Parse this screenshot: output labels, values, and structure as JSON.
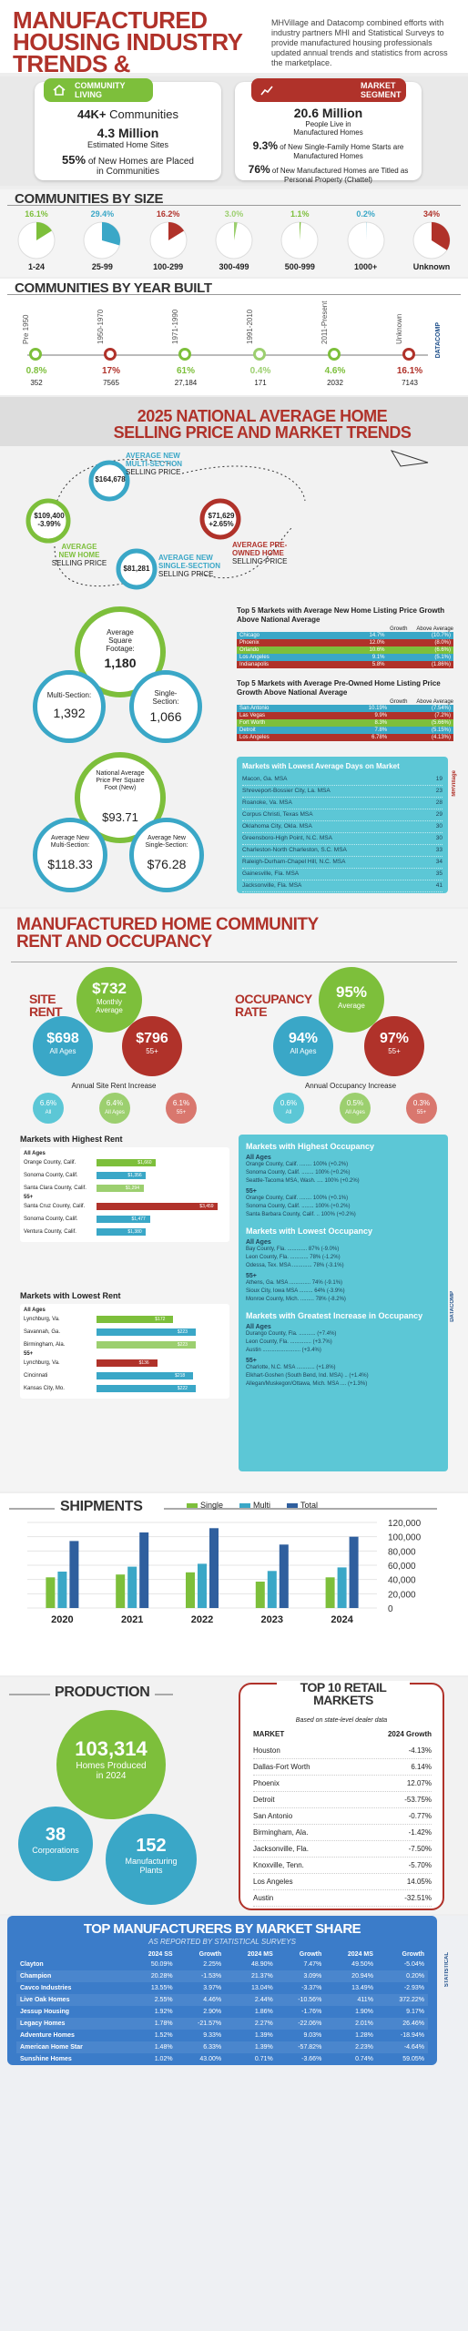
{
  "header": {
    "title_lines": [
      "MANUFACTURED",
      "HOUSING INDUSTRY",
      "TRENDS & STATISTICS:"
    ],
    "intro": "MHVillage and Datacomp combined efforts with industry partners MHI and Statistical Surveys to provide manufactured housing professionals updated annual trends and statistics from across the marketplace."
  },
  "community_living": {
    "label": "COMMUNITY LIVING",
    "stat1_value": "44K+",
    "stat1_text": "Communities",
    "stat2_value": "4.3 Million",
    "stat2_text": "Estimated Home Sites",
    "stat3_value": "55%",
    "stat3_text": "of New Homes are Placed in Communities"
  },
  "market_segment": {
    "label": "MARKET SEGMENT",
    "stat1_value": "20.6 Million",
    "stat1_text": "People Live in Manufactured Homes",
    "stat2_value": "9.3%",
    "stat2_text": "of New Single-Family Home Starts are Manufactured Homes",
    "stat3_value": "76%",
    "stat3_text": "of New Manufactured Homes are Titled as Personal Property (Chattel)"
  },
  "communities_by_size": {
    "title": "COMMUNITIES BY SIZE",
    "items": [
      {
        "pct": "16.1%",
        "label": "1-24",
        "value": 0.161,
        "color": "#7dbf3b"
      },
      {
        "pct": "29.4%",
        "label": "25-99",
        "value": 0.294,
        "color": "#3aa7c7"
      },
      {
        "pct": "16.2%",
        "label": "100-299",
        "value": 0.162,
        "color": "#b0322a"
      },
      {
        "pct": "3.0%",
        "label": "300-499",
        "value": 0.03,
        "color": "#9ccf6f"
      },
      {
        "pct": "1.1%",
        "label": "500-999",
        "value": 0.011,
        "color": "#7dbf3b"
      },
      {
        "pct": "0.2%",
        "label": "1000+",
        "value": 0.002,
        "color": "#3aa7c7"
      },
      {
        "pct": "34%",
        "label": "Unknown",
        "value": 0.34,
        "color": "#b0322a"
      }
    ]
  },
  "communities_by_year": {
    "title": "COMMUNITIES BY YEAR BUILT",
    "items": [
      {
        "label": "Pre 1950",
        "pct": "0.8%",
        "count": "352",
        "color": "#7dbf3b"
      },
      {
        "label": "1950-1970",
        "pct": "17%",
        "count": "7565",
        "color": "#b0322a"
      },
      {
        "label": "1971-1990",
        "pct": "61%",
        "count": "27,184",
        "color": "#7dbf3b"
      },
      {
        "label": "1991-2010",
        "pct": "0.4%",
        "count": "171",
        "color": "#9ccf6f"
      },
      {
        "label": "2011-Present",
        "pct": "4.6%",
        "count": "2032",
        "color": "#7dbf3b"
      },
      {
        "label": "Unknown",
        "pct": "16.1%",
        "count": "7143",
        "color": "#b0322a"
      }
    ]
  },
  "prices": {
    "title_line1": "2025 NATIONAL AVERAGE HOME",
    "title_line2": "SELLING PRICE AND MARKET TRENDS",
    "multi": {
      "price": "$164,678",
      "label_line1": "AVERAGE NEW",
      "label_line2": "MULTI-SECTION",
      "label_line3": "SELLING PRICE"
    },
    "new_home": {
      "price": "$109,400",
      "change": "-3.99%",
      "label_line1": "AVERAGE",
      "label_line2": "NEW HOME",
      "label_line3": "SELLING PRICE"
    },
    "preowned": {
      "price": "$71,629",
      "change": "+2.65%",
      "label_line1": "AVERAGE PRE-",
      "label_line2": "OWNED HOME",
      "label_line3": "SELLING PRICE"
    },
    "single": {
      "price": "$81,281",
      "label_line1": "AVERAGE NEW",
      "label_line2": "SINGLE-SECTION",
      "label_line3": "SELLING PRICE"
    }
  },
  "square_footage": {
    "avg_label": "Average Square Footage:",
    "avg_value": "1,180",
    "multi_label": "Multi-Section:",
    "multi_value": "1,392",
    "single_label": "Single-Section:",
    "single_value": "1,066"
  },
  "price_per_sqft": {
    "avg_label": "National Average Price Per Square Foot (New)",
    "avg_value": "$93.71",
    "multi_label": "Average New Multi-Section:",
    "multi_value": "$118.33",
    "single_label": "Average New Single-Section:",
    "single_value": "$76.28"
  },
  "top_new_markets": {
    "title": "Top 5 Markets with Average New Home Listing Price Growth Above National Average",
    "col1": "Growth",
    "col2": "Above Average",
    "rows": [
      {
        "market": "Chicago",
        "growth": "14.7%",
        "above": "(10.7%)"
      },
      {
        "market": "Phoenix",
        "growth": "12.0%",
        "above": "(8.0%)"
      },
      {
        "market": "Orlando",
        "growth": "10.6%",
        "above": "(6.6%)"
      },
      {
        "market": "Los Angeles",
        "growth": "9.1%",
        "above": "(5.1%)"
      },
      {
        "market": "Indianapolis",
        "growth": "5.8%",
        "above": "(1.86%)"
      }
    ]
  },
  "top_preowned_markets": {
    "title": "Top 5 Markets with Average Pre-Owned Home Listing Price Growth Above National Average",
    "col1": "Growth",
    "col2": "Above Average",
    "rows": [
      {
        "market": "San Antonio",
        "growth": "10.19%",
        "above": "(7.54%)"
      },
      {
        "market": "Las Vegas",
        "growth": "9.9%",
        "above": "(7.2%)"
      },
      {
        "market": "Fort Worth",
        "growth": "8.3%",
        "above": "(5.66%)"
      },
      {
        "market": "Detroit",
        "growth": "7.8%",
        "above": "(5.15%)"
      },
      {
        "market": "Los Angeles",
        "growth": "6.78%",
        "above": "(4.13%)"
      }
    ]
  },
  "lowest_days": {
    "title": "Markets with Lowest Average Days on Market",
    "rows": [
      {
        "market": "Macon, Ga. MSA",
        "days": "19"
      },
      {
        "market": "Shreveport-Bossier City, La. MSA",
        "days": "23"
      },
      {
        "market": "Roanoke, Va. MSA",
        "days": "28"
      },
      {
        "market": "Corpus Christi, Texas MSA",
        "days": "29"
      },
      {
        "market": "Oklahoma City, Okla. MSA",
        "days": "30"
      },
      {
        "market": "Greensboro-High Point, N.C. MSA",
        "days": "30"
      },
      {
        "market": "Charleston-North Charleston, S.C. MSA",
        "days": "33"
      },
      {
        "market": "Raleigh-Durham-Chapel Hill, N.C. MSA",
        "days": "34"
      },
      {
        "market": "Gainesville, Fla. MSA",
        "days": "35"
      },
      {
        "market": "Jacksonville, Fla. MSA",
        "days": "41"
      }
    ]
  },
  "rent": {
    "title_line1": "MANUFACTURED HOME COMMUNITY",
    "title_line2": "RENT AND OCCUPANCY",
    "site_rent_label": "SITE RENT",
    "monthly_value": "$732",
    "monthly_label": "Monthly Average",
    "all_value": "$698",
    "all_label": "All Ages",
    "senior_value": "$796",
    "senior_label": "55+",
    "increase_title": "Annual Site Rent Increase",
    "inc1": "6.6%",
    "inc1_label": "All",
    "inc2": "6.4%",
    "inc2_label": "All Ages",
    "inc3": "6.1%",
    "inc3_label": "55+"
  },
  "occupancy": {
    "label": "OCCUPANCY RATE",
    "avg_value": "95%",
    "avg_label": "Average",
    "all_value": "94%",
    "all_label": "All Ages",
    "senior_value": "97%",
    "senior_label": "55+",
    "increase_title": "Annual Occupancy Increase",
    "inc1": "0.6%",
    "inc1_label": "All",
    "inc2": "0.5%",
    "inc2_label": "All Ages",
    "inc3": "0.3%",
    "inc3_label": "55+"
  },
  "highest_rent": {
    "title": "Markets with Highest Rent",
    "group1": "All Ages",
    "group2": "55+",
    "bars": [
      {
        "market": "Orange County, Calif.",
        "value": "$1,660",
        "frac": 0.48,
        "color": "#7dbf3b"
      },
      {
        "market": "Sonoma County, Calif.",
        "value": "$1,356",
        "frac": 0.4,
        "color": "#3aa7c7"
      },
      {
        "market": "Santa Clara County, Calif.",
        "value": "$1,294",
        "frac": 0.38,
        "color": "#9ccf6f"
      },
      {
        "market": "Santa Cruz County, Calif.",
        "value": "$3,459",
        "frac": 0.98,
        "color": "#b0322a"
      },
      {
        "market": "Sonoma County, Calif.",
        "value": "$1,477",
        "frac": 0.43,
        "color": "#3aa7c7"
      },
      {
        "market": "Ventura County, Calif.",
        "value": "$1,380",
        "frac": 0.4,
        "color": "#3aa7c7"
      }
    ]
  },
  "lowest_rent": {
    "title": "Markets with Lowest Rent",
    "group1": "All Ages",
    "group2": "55+",
    "bars": [
      {
        "market": "Lynchburg, Va.",
        "value": "$172",
        "frac": 0.62,
        "color": "#7dbf3b"
      },
      {
        "market": "Savannah, Ga.",
        "value": "$223",
        "frac": 0.8,
        "color": "#3aa7c7"
      },
      {
        "market": "Birmingham, Ala.",
        "value": "$223",
        "frac": 0.8,
        "color": "#9ccf6f"
      },
      {
        "market": "Lynchburg, Va.",
        "value": "$136",
        "frac": 0.49,
        "color": "#b0322a"
      },
      {
        "market": "Cincinnati",
        "value": "$218",
        "frac": 0.78,
        "color": "#3aa7c7"
      },
      {
        "market": "Kansas City, Mo.",
        "value": "$222",
        "frac": 0.8,
        "color": "#3aa7c7"
      }
    ]
  },
  "occupancy_box": {
    "highest_title": "Markets with Highest Occupancy",
    "highest_all_label": "All Ages",
    "highest_all": [
      "Orange County, Calif. ........ 100% (+0.2%)",
      "Sonoma County, Calif. ........ 100% (+0.2%)",
      "Seattle-Tacoma MSA, Wash. .... 100% (+0.2%)"
    ],
    "highest_55_label": "55+",
    "highest_55": [
      "Orange County, Calif. ........ 100% (+0.1%)",
      "Sonoma County, Calif. ........ 100% (+0.2%)",
      "Santa Barbara County, Calif. .. 100% (+0.2%)"
    ],
    "lowest_title": "Markets with Lowest Occupancy",
    "lowest_all_label": "All Ages",
    "lowest_all": [
      "Bay County, Fla. ............. 87% (-9.0%)",
      "Leon County, Fla. ............ 78% (-1.2%)",
      "Odessa, Tex. MSA ............. 78% (-3.1%)"
    ],
    "lowest_55_label": "55+",
    "lowest_55": [
      "Athens, Ga. MSA .............. 74% (-9.1%)",
      "Sioux City, Iowa MSA ......... 64% (-3.9%)",
      "Monroe County, Mich. ......... 78% (-8.2%)"
    ],
    "growth_title": "Markets with Greatest Increase in Occupancy",
    "growth_all_label": "All Ages",
    "growth_all": [
      "Durango County, Fla. ........... (+7.4%)",
      "Leon County, Fla. .............. (+3.7%)",
      "Austin ......................... (+3.4%)"
    ],
    "growth_55_label": "55+",
    "growth_55": [
      "Charlotte, N.C. MSA ............ (+1.8%)",
      "Elkhart-Goshen (South Bend, Ind. MSA) .. (+1.4%)",
      "Allegan/Muskegon/Ottawa, Mich. MSA .... (+1.3%)"
    ]
  },
  "shipments": {
    "title": "SHIPMENTS",
    "legend": [
      "Single",
      "Multi",
      "Total"
    ]
  },
  "chart_data": {
    "type": "bar",
    "title": "SHIPMENTS",
    "categories": [
      "2020",
      "2021",
      "2022",
      "2023",
      "2024"
    ],
    "series": [
      {
        "name": "Single",
        "values": [
          43000,
          47000,
          50000,
          37000,
          43000
        ],
        "color": "#7dbf3b"
      },
      {
        "name": "Multi",
        "values": [
          51000,
          58000,
          62000,
          52000,
          57000
        ],
        "color": "#3aa7c7"
      },
      {
        "name": "Total",
        "values": [
          94000,
          106000,
          112000,
          89000,
          100000
        ],
        "color": "#2f5f9e"
      }
    ],
    "yticks": [
      "120,000",
      "100,000",
      "80,000",
      "60,000",
      "40,000",
      "20,000",
      "0"
    ],
    "ylim": [
      0,
      120000
    ]
  },
  "production": {
    "title": "PRODUCTION",
    "homes_value": "103,314",
    "homes_label": "Homes Produced in 2024",
    "corp_value": "38",
    "corp_label": "Corporations",
    "plants_value": "152",
    "plants_label": "Manufacturing Plants"
  },
  "retail": {
    "title_line1": "TOP 10 RETAIL",
    "title_line2": "MARKETS",
    "subtitle": "Based on state-level dealer data",
    "col1": "MARKET",
    "col2": "2024 Growth",
    "rows": [
      {
        "market": "Houston",
        "growth": "-4.13%"
      },
      {
        "market": "Dallas-Fort Worth",
        "growth": "6.14%"
      },
      {
        "market": "Phoenix",
        "growth": "12.07%"
      },
      {
        "market": "Detroit",
        "growth": "-53.75%"
      },
      {
        "market": "San Antonio",
        "growth": "-0.77%"
      },
      {
        "market": "Birmingham, Ala.",
        "growth": "-1.42%"
      },
      {
        "market": "Jacksonville, Fla.",
        "growth": "-7.50%"
      },
      {
        "market": "Knoxville, Tenn.",
        "growth": "-5.70%"
      },
      {
        "market": "Los Angeles",
        "growth": "14.05%"
      },
      {
        "market": "Austin",
        "growth": "-32.51%"
      }
    ]
  },
  "manufacturers": {
    "title": "TOP MANUFACTURERS BY MARKET SHARE",
    "subtitle": "AS REPORTED BY STATISTICAL SURVEYS",
    "headers": [
      "",
      "2024 SS",
      "Growth",
      "2024 MS",
      "Growth",
      "2024 MS",
      "Growth"
    ],
    "rows": [
      [
        "Clayton",
        "50.09%",
        "2.25%",
        "48.90%",
        "7.47%",
        "49.50%",
        "-5.04%"
      ],
      [
        "Champion",
        "20.28%",
        "-1.53%",
        "21.37%",
        "3.09%",
        "20.94%",
        "0.20%"
      ],
      [
        "Cavco Industries",
        "13.55%",
        "3.97%",
        "13.04%",
        "-3.37%",
        "13.49%",
        "-2.93%"
      ],
      [
        "Live Oak Homes",
        "2.55%",
        "4.46%",
        "2.44%",
        "-10.56%",
        "411%",
        "372.22%"
      ],
      [
        "Jessup Housing",
        "1.92%",
        "2.90%",
        "1.86%",
        "-1.76%",
        "1.90%",
        "9.17%"
      ],
      [
        "Legacy Homes",
        "1.78%",
        "-21.57%",
        "2.27%",
        "-22.06%",
        "2.01%",
        "26.46%"
      ],
      [
        "Adventure Homes",
        "1.52%",
        "9.33%",
        "1.39%",
        "9.03%",
        "1.28%",
        "-18.94%"
      ],
      [
        "American Home Star",
        "1.48%",
        "6.33%",
        "1.39%",
        "-57.82%",
        "2.23%",
        "-4.64%"
      ],
      [
        "Sunshine Homes",
        "1.02%",
        "43.00%",
        "0.71%",
        "-3.66%",
        "0.74%",
        "59.05%"
      ]
    ]
  }
}
